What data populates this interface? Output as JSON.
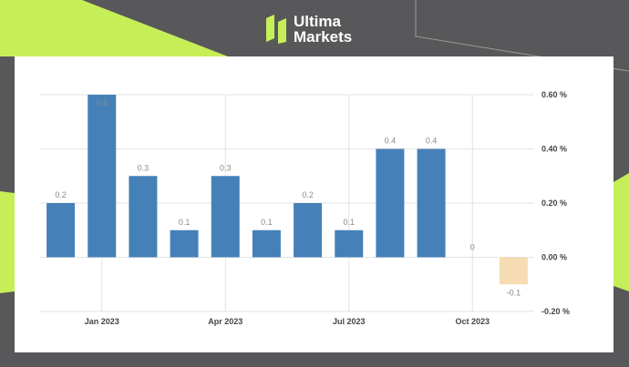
{
  "brand": {
    "line1": "Ultima",
    "line2": "Markets",
    "colors": {
      "accent": "#c6ef57",
      "background": "#58585a"
    },
    "icon": "ultima-logo-icon"
  },
  "chart_data": {
    "type": "bar",
    "title": "",
    "xlabel": "",
    "ylabel": "",
    "categories": [
      "2022-12",
      "2023-01",
      "2023-02",
      "2023-03",
      "2023-04",
      "2023-05",
      "2023-06",
      "2023-07",
      "2023-08",
      "2023-09",
      "2023-10",
      "2023-11"
    ],
    "values": [
      0.2,
      0.6,
      0.3,
      0.1,
      0.3,
      0.1,
      0.2,
      0.1,
      0.4,
      0.4,
      0,
      -0.1
    ],
    "data_labels": [
      "0.2",
      "0.6",
      "0.3",
      "0.1",
      "0.3",
      "0.1",
      "0.2",
      "0.1",
      "0.4",
      "0.4",
      "0",
      "-0.1"
    ],
    "x_tick_labels": [
      "Jan 2023",
      "Apr 2023",
      "Jul 2023",
      "Oct 2023"
    ],
    "x_tick_categories": [
      "2023-01",
      "2023-04",
      "2023-07",
      "2023-10"
    ],
    "y_ticks": [
      0.6,
      0.4,
      0.2,
      0.0,
      -0.2
    ],
    "y_tick_labels": [
      "0.60 %",
      "0.40 %",
      "0.20 %",
      "0.00 %",
      "-0.20 %"
    ],
    "ylim": [
      -0.2,
      0.6
    ],
    "y_axis_position": "right",
    "grid": true,
    "colors": {
      "bar": "#4581b8",
      "forecast_bar": "#f6dcb3"
    },
    "highlighted_categories": [
      "2023-11"
    ]
  }
}
